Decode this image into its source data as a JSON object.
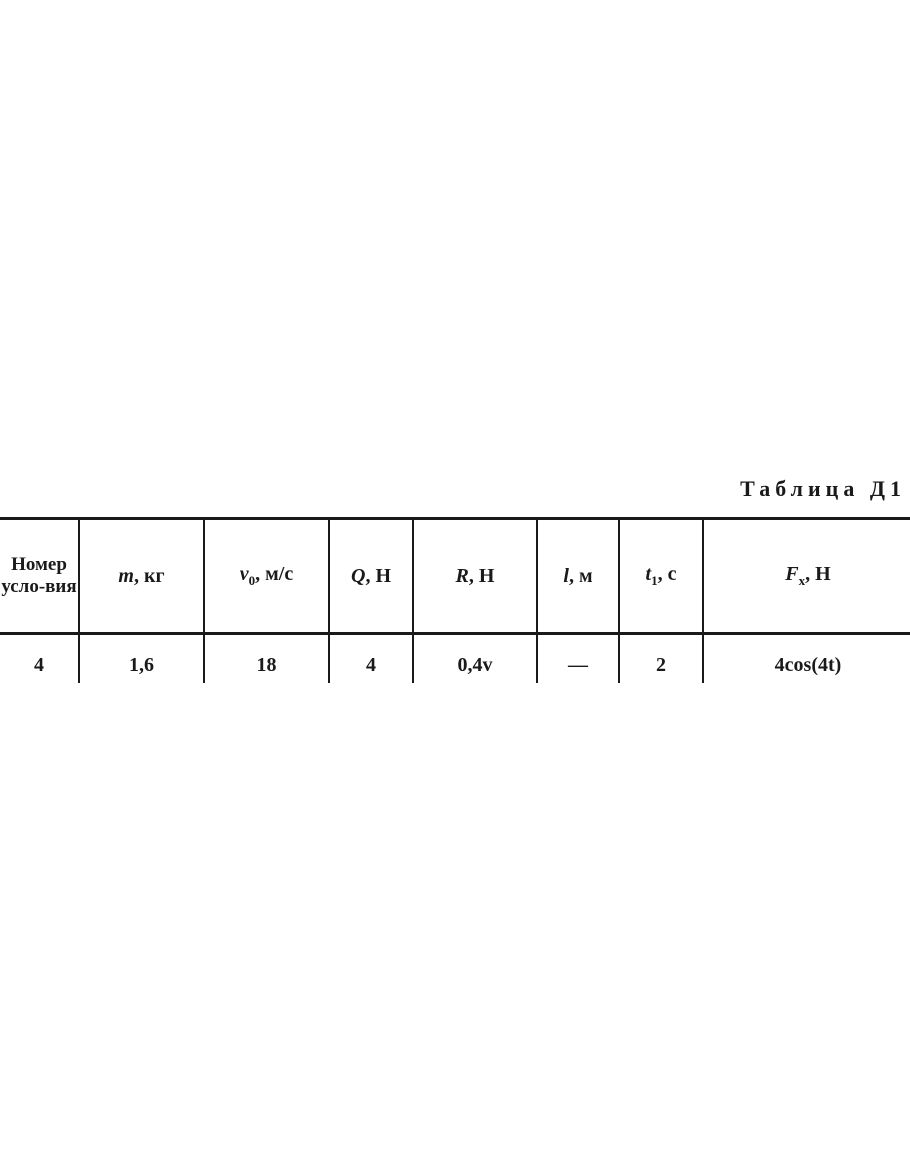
{
  "caption": "Таблица Д1",
  "table": {
    "headers": [
      {
        "sym": "",
        "sub": "",
        "unit": "Номер усло-вия"
      },
      {
        "sym": "m",
        "sub": "",
        "unit": ", кг"
      },
      {
        "sym": "v",
        "sub": "0",
        "unit": ", м/с"
      },
      {
        "sym": "Q",
        "sub": "",
        "unit": ", Н"
      },
      {
        "sym": "R",
        "sub": "",
        "unit": ", Н"
      },
      {
        "sym": "l",
        "sub": "",
        "unit": ", м"
      },
      {
        "sym": "t",
        "sub": "1",
        "unit": ", с"
      },
      {
        "sym": "F",
        "sub": "x",
        "unit": ", Н"
      }
    ],
    "rows": [
      [
        "4",
        "1,6",
        "18",
        "4",
        "0,4v",
        "—",
        "2",
        "4cos(4t)"
      ]
    ]
  }
}
